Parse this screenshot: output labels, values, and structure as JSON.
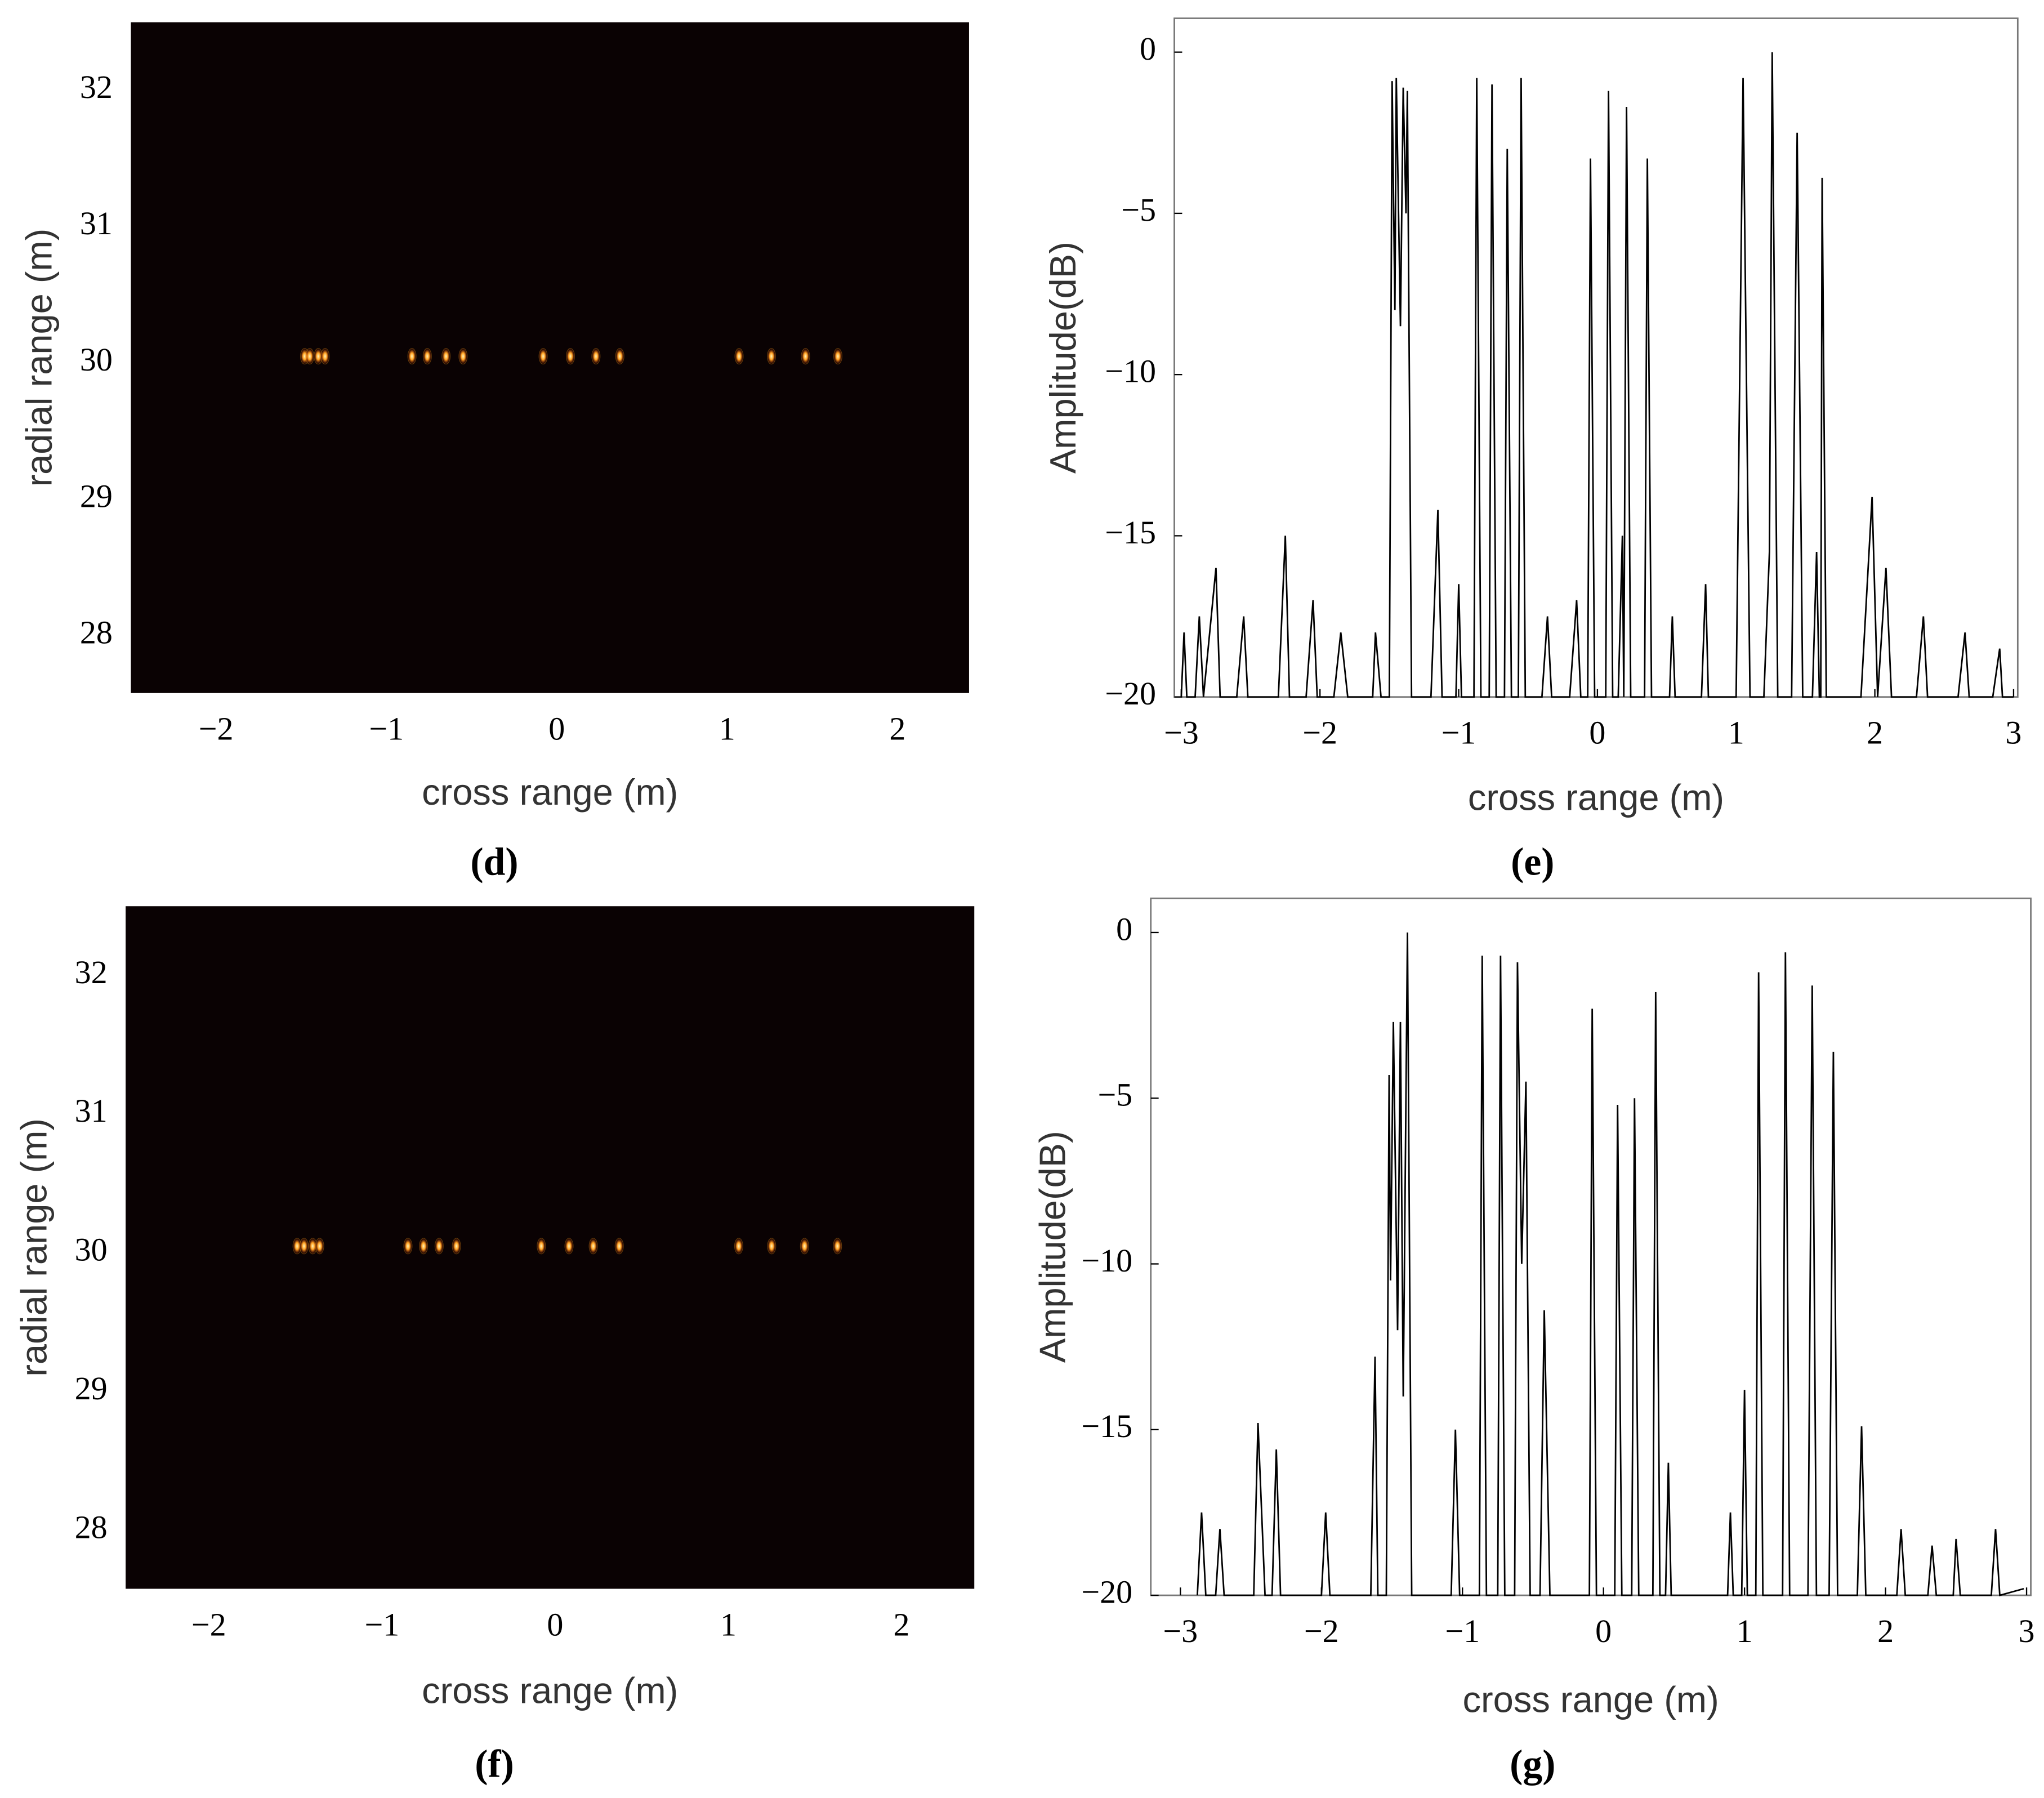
{
  "chart_data": [
    {
      "type": "scatter",
      "caption": "(d)",
      "xlabel": "cross range (m)",
      "ylabel": "radial range (m)",
      "x": [
        -1.48,
        -1.45,
        -1.4,
        -1.36,
        -0.85,
        -0.76,
        -0.65,
        -0.55,
        -0.08,
        0.08,
        0.23,
        0.37,
        1.07,
        1.26,
        1.46,
        1.65
      ],
      "y": [
        30.05,
        30.05,
        30.05,
        30.05,
        30.05,
        30.05,
        30.05,
        30.05,
        30.05,
        30.05,
        30.05,
        30.05,
        30.05,
        30.05,
        30.05,
        30.05
      ],
      "color": "#ff9a1a",
      "background": "#0a0203",
      "xlim": [
        -2.5,
        2.42
      ],
      "ylim": [
        27.58,
        32.5
      ],
      "xticks": [
        {
          "value": -2,
          "label": "−2"
        },
        {
          "value": -1,
          "label": "−1"
        },
        0,
        1,
        2
      ],
      "yticks": [
        28,
        29,
        30,
        31,
        32
      ]
    },
    {
      "type": "line",
      "caption": "(e)",
      "xlabel": "cross range (m)",
      "ylabel": "Amplitude(dB)",
      "color": "#000000",
      "x": [
        -3.0,
        -2.98,
        -2.96,
        -2.9,
        -2.87,
        -2.84,
        -2.75,
        -2.72,
        -2.6,
        -2.55,
        -2.52,
        -2.3,
        -2.25,
        -2.22,
        -2.1,
        -2.05,
        -2.02,
        -1.9,
        -1.85,
        -1.8,
        -1.62,
        -1.6,
        -1.56,
        -1.5,
        -1.48,
        -1.46,
        -1.45,
        -1.42,
        -1.4,
        -1.38,
        -1.37,
        -1.34,
        -1.2,
        -1.15,
        -1.12,
        -1.02,
        -1.0,
        -0.98,
        -0.89,
        -0.87,
        -0.84,
        -0.78,
        -0.76,
        -0.73,
        -0.67,
        -0.65,
        -0.62,
        -0.57,
        -0.55,
        -0.52,
        -0.4,
        -0.36,
        -0.33,
        -0.2,
        -0.15,
        -0.12,
        -0.07,
        -0.05,
        -0.02,
        0.06,
        0.08,
        0.11,
        0.15,
        0.18,
        0.19,
        0.21,
        0.24,
        0.34,
        0.36,
        0.39,
        0.52,
        0.54,
        0.56,
        0.75,
        0.78,
        0.8,
        1.0,
        1.05,
        1.1,
        1.2,
        1.24,
        1.26,
        1.3,
        1.4,
        1.44,
        1.48,
        1.55,
        1.58,
        1.6,
        1.61,
        1.62,
        1.65,
        1.9,
        1.98,
        2.02,
        2.08,
        2.12,
        2.3,
        2.35,
        2.38,
        2.6,
        2.65,
        2.68,
        2.85,
        2.9,
        2.92,
        3.0
      ],
      "values": [
        -20,
        -18,
        -20,
        -20,
        -17.5,
        -20,
        -16,
        -20,
        -20,
        -17.5,
        -20,
        -20,
        -15,
        -20,
        -20,
        -17,
        -20,
        -20,
        -18,
        -20,
        -20,
        -18,
        -20,
        -20,
        -0.9,
        -8,
        -0.8,
        -8.5,
        -1.1,
        -5,
        -1.2,
        -20,
        -20,
        -14.2,
        -20,
        -20,
        -16.5,
        -20,
        -20,
        -0.8,
        -20,
        -20,
        -1.0,
        -20,
        -20,
        -3.0,
        -20,
        -20,
        -0.8,
        -20,
        -20,
        -17.5,
        -20,
        -20,
        -17,
        -20,
        -20,
        -3.3,
        -20,
        -20,
        -1.2,
        -20,
        -20,
        -15,
        -20,
        -1.7,
        -20,
        -20,
        -3.3,
        -20,
        -20,
        -17.5,
        -20,
        -20,
        -16.5,
        -20,
        -20,
        -0.8,
        -20,
        -20,
        -15.5,
        0,
        -20,
        -20,
        -2.5,
        -20,
        -20,
        -15.5,
        -20,
        -20,
        -3.9,
        -20,
        -20,
        -13.8,
        -20,
        -16,
        -20,
        -20,
        -17.5,
        -20,
        -20,
        -18,
        -20,
        -20,
        -18.5,
        -20,
        -20
      ],
      "xlim": [
        -3.05,
        3.03
      ],
      "ylim": [
        -20,
        1.05
      ],
      "xticks": [
        {
          "value": -3,
          "label": "−3"
        },
        {
          "value": -2,
          "label": "−2"
        },
        {
          "value": -1,
          "label": "−1"
        },
        0,
        1,
        2,
        3
      ],
      "yticks": [
        {
          "value": -20,
          "label": "−20"
        },
        {
          "value": -15,
          "label": "−15"
        },
        {
          "value": -10,
          "label": "−10"
        },
        {
          "value": -5,
          "label": "−5"
        },
        0
      ]
    },
    {
      "type": "scatter",
      "caption": "(f)",
      "xlabel": "cross range (m)",
      "ylabel": "radial range (m)",
      "x": [
        -1.49,
        -1.45,
        -1.4,
        -1.36,
        -0.85,
        -0.76,
        -0.67,
        -0.57,
        -0.08,
        0.08,
        0.22,
        0.37,
        1.06,
        1.25,
        1.44,
        1.63
      ],
      "y": [
        30.05,
        30.05,
        30.05,
        30.05,
        30.05,
        30.05,
        30.05,
        30.05,
        30.05,
        30.05,
        30.05,
        30.05,
        30.05,
        30.05,
        30.05,
        30.05
      ],
      "color": "#ff9a1a",
      "background": "#0a0203",
      "xlim": [
        -2.48,
        2.42
      ],
      "ylim": [
        27.58,
        32.5
      ],
      "xticks": [
        {
          "value": -2,
          "label": "−2"
        },
        {
          "value": -1,
          "label": "−1"
        },
        0,
        1,
        2
      ],
      "yticks": [
        28,
        29,
        30,
        31,
        32
      ]
    },
    {
      "type": "line",
      "caption": "(g)",
      "xlabel": "cross range (m)",
      "ylabel": "Amplitude(dB)",
      "color": "#000000",
      "x": [
        -2.88,
        -2.85,
        -2.82,
        -2.75,
        -2.72,
        -2.69,
        -2.48,
        -2.45,
        -2.4,
        -2.35,
        -2.32,
        -2.29,
        -2.0,
        -1.97,
        -1.94,
        -1.65,
        -1.62,
        -1.6,
        -1.54,
        -1.52,
        -1.51,
        -1.49,
        -1.46,
        -1.44,
        -1.42,
        -1.39,
        -1.36,
        -1.08,
        -1.05,
        -1.02,
        -0.88,
        -0.86,
        -0.83,
        -0.75,
        -0.73,
        -0.7,
        -0.63,
        -0.61,
        -0.58,
        -0.55,
        -0.52,
        -0.45,
        -0.42,
        -0.38,
        -0.1,
        -0.08,
        -0.05,
        0.08,
        0.1,
        0.13,
        0.2,
        0.22,
        0.25,
        0.35,
        0.37,
        0.4,
        0.44,
        0.46,
        0.48,
        0.88,
        0.9,
        0.92,
        0.98,
        1.0,
        1.02,
        1.08,
        1.1,
        1.13,
        1.27,
        1.29,
        1.32,
        1.45,
        1.48,
        1.51,
        1.6,
        1.63,
        1.66,
        1.8,
        1.83,
        1.86,
        2.08,
        2.11,
        2.14,
        2.3,
        2.33,
        2.36,
        2.48,
        2.5,
        2.53,
        2.75,
        2.78,
        2.81,
        2.98
      ],
      "values": [
        -20,
        -17.5,
        -20,
        -20,
        -18,
        -20,
        -20,
        -14.8,
        -20,
        -20,
        -15.6,
        -20,
        -20,
        -17.5,
        -20,
        -20,
        -12.8,
        -20,
        -20,
        -4.3,
        -10.5,
        -2.7,
        -12,
        -2.7,
        -14,
        0,
        -20,
        -20,
        -15,
        -20,
        -20,
        -0.7,
        -20,
        -20,
        -0.7,
        -20,
        -20,
        -0.9,
        -10,
        -4.5,
        -20,
        -20,
        -11.4,
        -20,
        -20,
        -2.3,
        -20,
        -20,
        -5.2,
        -20,
        -20,
        -5.0,
        -20,
        -20,
        -1.8,
        -20,
        -20,
        -16,
        -20,
        -20,
        -17.5,
        -20,
        -20,
        -13.8,
        -20,
        -20,
        -1.2,
        -20,
        -20,
        -0.6,
        -20,
        -20,
        -1.6,
        -20,
        -20,
        -3.6,
        -20,
        -20,
        -14.9,
        -20,
        -20,
        -18,
        -20,
        -20,
        -18.5,
        -20,
        -20,
        -18.3,
        -20,
        -20,
        -18,
        -20,
        -19.8
      ],
      "xlim": [
        -3.21,
        3.03
      ],
      "ylim": [
        -20,
        1.03
      ],
      "xticks": [
        {
          "value": -3,
          "label": "−3"
        },
        {
          "value": -2,
          "label": "−2"
        },
        {
          "value": -1,
          "label": "−1"
        },
        0,
        1,
        2,
        3
      ],
      "yticks": [
        {
          "value": -20,
          "label": "−20"
        },
        {
          "value": -15,
          "label": "−15"
        },
        {
          "value": -10,
          "label": "−10"
        },
        {
          "value": -5,
          "label": "−5"
        },
        0
      ]
    }
  ]
}
